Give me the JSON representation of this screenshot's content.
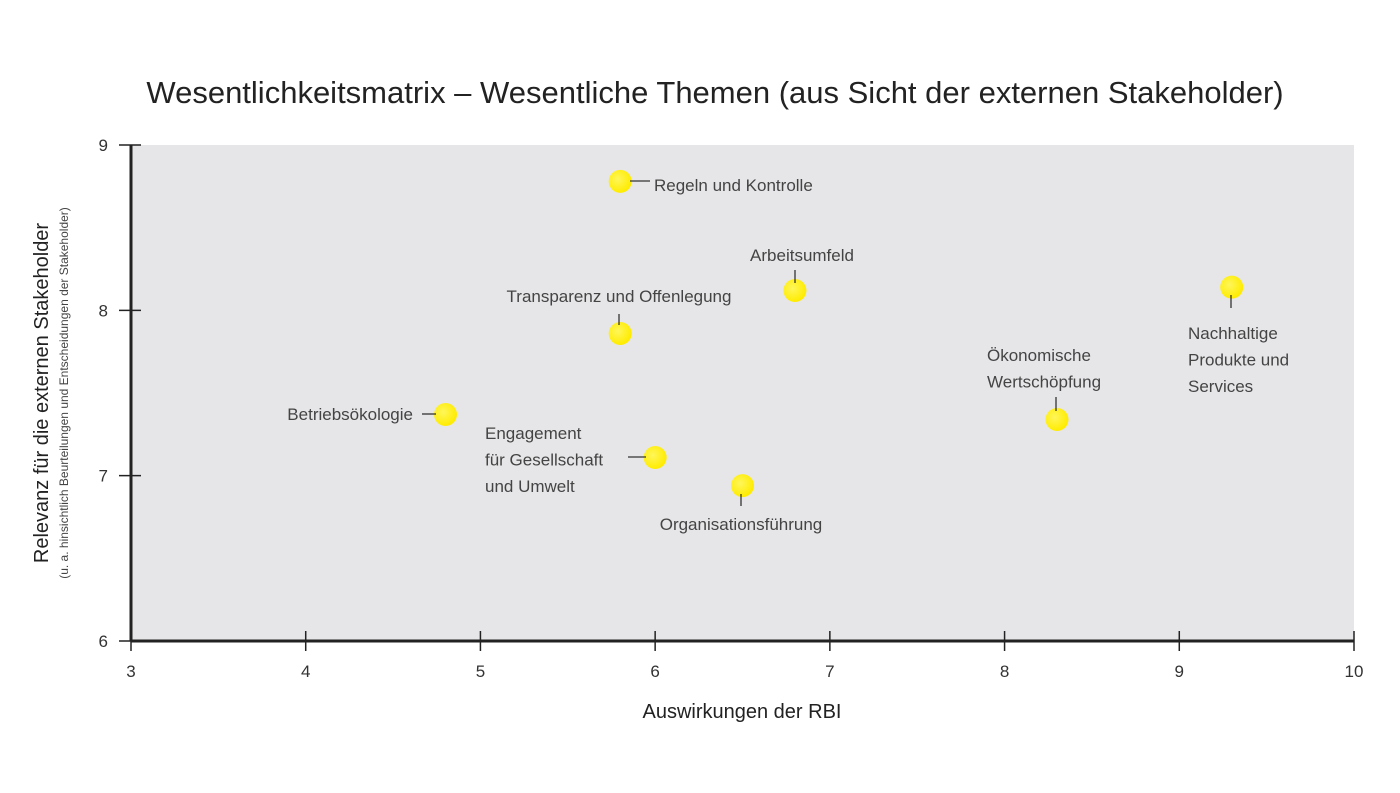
{
  "chart_data": {
    "type": "scatter",
    "title": "Wesentlichkeitsmatrix – Wesentliche Themen (aus Sicht der externen Stakeholder)",
    "xlabel": "Auswirkungen der RBI",
    "ylabel": "Relevanz für die externen Stakeholder",
    "ylabel_sub": "(u. a. hinsichtlich Beurteilungen und Entscheidungen der Stakeholder)",
    "xlim": [
      3,
      10
    ],
    "ylim": [
      6,
      9
    ],
    "xticks": [
      "3",
      "4",
      "5",
      "6",
      "7",
      "8",
      "9",
      "10"
    ],
    "yticks": [
      "6",
      "7",
      "8",
      "9"
    ],
    "grid": false,
    "colors": {
      "plot_background": "#e6e6e8",
      "marker": "#ffec00",
      "axis": "#222222"
    },
    "points": [
      {
        "label": [
          "Regeln und Kontrolle"
        ],
        "x": 5.8,
        "y": 8.78
      },
      {
        "label": [
          "Arbeitsumfeld"
        ],
        "x": 6.8,
        "y": 8.12
      },
      {
        "label": [
          "Transparenz und Offenlegung"
        ],
        "x": 5.8,
        "y": 7.86
      },
      {
        "label": [
          "Betriebsökologie"
        ],
        "x": 4.8,
        "y": 7.37
      },
      {
        "label": [
          "Engagement",
          "für Gesellschaft",
          "und Umwelt"
        ],
        "x": 6.0,
        "y": 7.11
      },
      {
        "label": [
          "Organisationsführung"
        ],
        "x": 6.5,
        "y": 6.94
      },
      {
        "label": [
          "Ökonomische",
          "Wertschöpfung"
        ],
        "x": 8.3,
        "y": 7.34
      },
      {
        "label": [
          "Nachhaltige",
          "Produkte und",
          "Services"
        ],
        "x": 9.3,
        "y": 8.14
      }
    ]
  }
}
